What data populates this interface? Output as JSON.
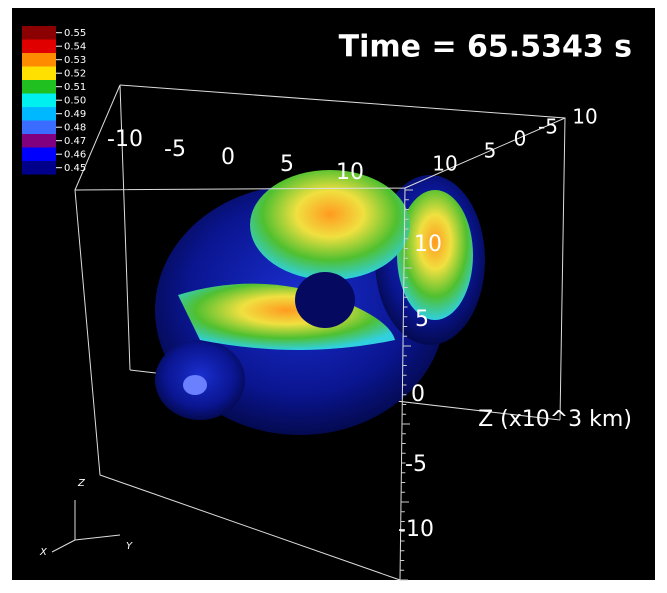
{
  "title": "Time = 65.5343 s",
  "legend": {
    "entries": [
      {
        "label": "0.55",
        "color": "#8b0000"
      },
      {
        "label": "0.54",
        "color": "#e00000"
      },
      {
        "label": "0.53",
        "color": "#ff8c00"
      },
      {
        "label": "0.52",
        "color": "#ffe000"
      },
      {
        "label": "0.51",
        "color": "#20c020"
      },
      {
        "label": "0.50",
        "color": "#00f0f0"
      },
      {
        "label": "0.49",
        "color": "#00b8ff"
      },
      {
        "label": "0.48",
        "color": "#3a6cff"
      },
      {
        "label": "0.47",
        "color": "#800080"
      },
      {
        "label": "0.46",
        "color": "#0000ff"
      },
      {
        "label": "0.45",
        "color": "#00008b"
      }
    ]
  },
  "axes": {
    "front_ticks": [
      "-10",
      "-5",
      "0",
      "5",
      "10"
    ],
    "back_ticks": [
      "10",
      "5",
      "0",
      "-5",
      "10"
    ],
    "vertical_ticks": [
      "10",
      "5",
      "0",
      "-5",
      "-10"
    ],
    "vertical_title": "Z (x10^3 km)"
  },
  "triad": {
    "z": "Z",
    "x": "X",
    "y": "Y"
  }
}
